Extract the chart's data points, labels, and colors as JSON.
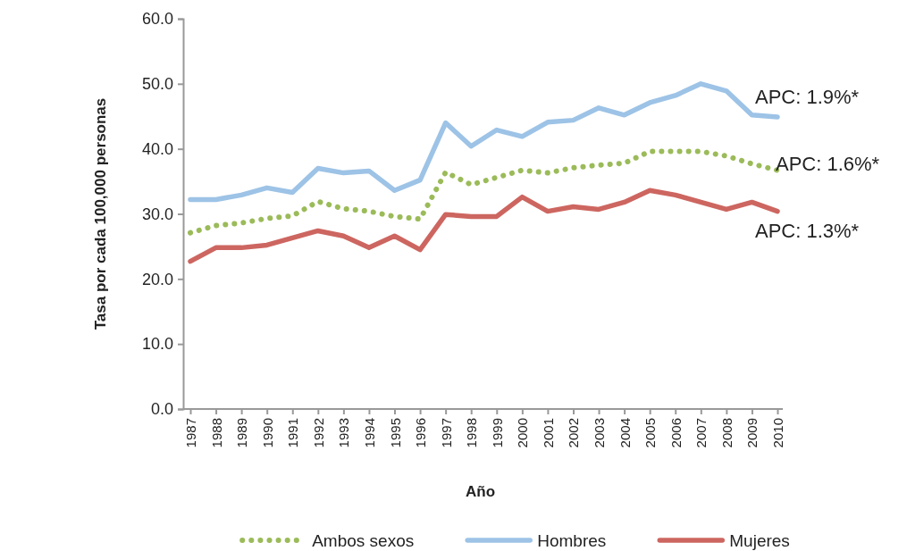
{
  "chart_data": {
    "type": "line",
    "xlabel": "Año",
    "ylabel": "Tasa por cada 100,000 personas",
    "categories": [
      "1987",
      "1988",
      "1989",
      "1990",
      "1991",
      "1992",
      "1993",
      "1994",
      "1995",
      "1996",
      "1997",
      "1998",
      "1999",
      "2000",
      "2001",
      "2002",
      "2003",
      "2004",
      "2005",
      "2006",
      "2007",
      "2008",
      "2009",
      "2010"
    ],
    "series": [
      {
        "name": "Ambos sexos",
        "color": "#9bbb59",
        "line_style": "dotted",
        "values": [
          27.1,
          28.2,
          28.6,
          29.3,
          29.7,
          31.9,
          30.8,
          30.4,
          29.6,
          29.2,
          36.4,
          34.5,
          35.6,
          36.7,
          36.3,
          37.1,
          37.5,
          37.8,
          39.6,
          39.6,
          39.6,
          38.9,
          37.7,
          36.7
        ]
      },
      {
        "name": "Hombres",
        "color": "#9dc3e6",
        "line_style": "solid",
        "values": [
          32.2,
          32.2,
          32.9,
          34.0,
          33.3,
          37.0,
          36.3,
          36.6,
          33.6,
          35.2,
          44.0,
          40.4,
          42.9,
          41.9,
          44.1,
          44.4,
          46.3,
          45.2,
          47.1,
          48.2,
          50.0,
          48.9,
          45.2,
          44.9
        ]
      },
      {
        "name": "Mujeres",
        "color": "#cd6660",
        "line_style": "solid",
        "values": [
          22.7,
          24.8,
          24.8,
          25.2,
          26.3,
          27.4,
          26.6,
          24.8,
          26.6,
          24.5,
          29.9,
          29.6,
          29.6,
          32.6,
          30.4,
          31.1,
          30.7,
          31.8,
          33.6,
          32.9,
          31.8,
          30.7,
          31.8,
          30.4
        ]
      }
    ],
    "ylim": [
      0,
      60
    ],
    "yticks": [
      {
        "value": 0,
        "label": "0.0"
      },
      {
        "value": 10,
        "label": "10.0"
      },
      {
        "value": 20,
        "label": "20.0"
      },
      {
        "value": 30,
        "label": "30.0"
      },
      {
        "value": 40,
        "label": "40.0"
      },
      {
        "value": 50,
        "label": "50.0"
      },
      {
        "value": 60,
        "label": "60.0"
      }
    ],
    "annotations": [
      "APC: 1.9%*",
      "APC: 1.6%*",
      "APC: 1.3%*"
    ],
    "grid": false,
    "legend": "bottom",
    "marker": "none"
  }
}
